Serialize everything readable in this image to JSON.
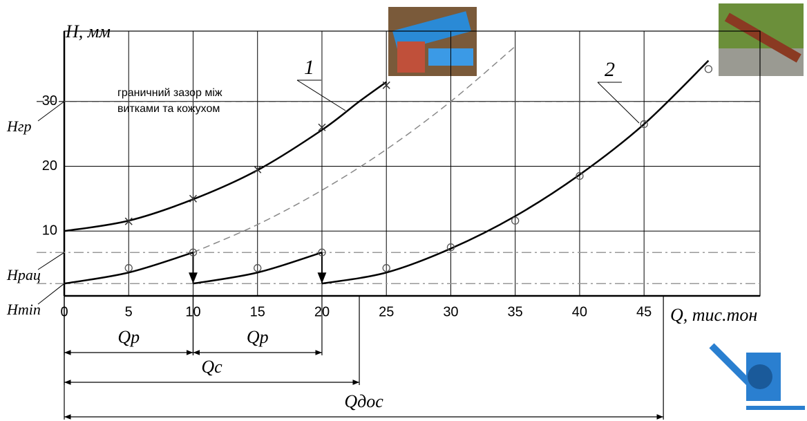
{
  "chart_data": {
    "type": "line",
    "y_label": "H, мм",
    "x_label": "Q, тис.тон",
    "xlim": [
      0,
      54
    ],
    "ylim": [
      0,
      40
    ],
    "xticks": [
      0,
      5,
      10,
      15,
      20,
      25,
      30,
      35,
      40,
      45
    ],
    "yticks": [
      10,
      20,
      30
    ],
    "grid": true,
    "series": [
      {
        "name": "1",
        "color": "#000000",
        "style": "solid",
        "x": [
          0,
          5,
          10,
          15,
          20,
          22.9,
          25
        ],
        "values": [
          10,
          11.6,
          14.9,
          19.4,
          25.6,
          30,
          33
        ]
      },
      {
        "color": "#888888",
        "style": "dashed",
        "x": [
          10,
          15,
          20,
          25,
          30,
          35
        ],
        "values": [
          6.7,
          11,
          16.3,
          22.6,
          30,
          38.5
        ]
      },
      {
        "color": "#000000",
        "style": "solid",
        "x": [
          0,
          5,
          10
        ],
        "values": [
          1.9,
          3.6,
          6.7
        ]
      },
      {
        "color": "#000000",
        "style": "solid",
        "x": [
          10,
          15,
          20
        ],
        "values": [
          1.9,
          3.6,
          6.7
        ]
      },
      {
        "name": "2",
        "color": "#000000",
        "style": "solid",
        "x": [
          20,
          25,
          30,
          35,
          40,
          45,
          50
        ],
        "values": [
          1.9,
          3.6,
          7.3,
          12.3,
          18.7,
          26.5,
          36.3
        ]
      }
    ],
    "markers": [
      {
        "shape": "cross",
        "x": [
          5,
          10,
          15,
          20,
          25
        ],
        "values": [
          11.5,
          15,
          19.5,
          26,
          32.5
        ]
      },
      {
        "shape": "circle",
        "x": [
          5,
          10,
          15,
          20,
          25,
          30,
          35,
          40,
          45,
          50
        ],
        "values": [
          4.3,
          6.7,
          4.3,
          6.7,
          4.3,
          7.5,
          11.6,
          18.5,
          26.5,
          35
        ]
      }
    ],
    "hlines": [
      {
        "value": 30,
        "label": "Hгр",
        "style": "dashed"
      },
      {
        "value": 6.7,
        "label": "Hрац",
        "style": "dashdot"
      },
      {
        "value": 1.9,
        "label": "Hmin",
        "style": "dashdot"
      }
    ],
    "origin_label": "0",
    "annotation": [
      "граничний зазор між",
      "витками та кожухом"
    ],
    "dimensions": [
      {
        "label": "Qр",
        "from": 0,
        "to": 10
      },
      {
        "label": "Qр",
        "from": 10,
        "to": 20
      },
      {
        "label": "Qс",
        "from": 0,
        "to": 22.9
      },
      {
        "label": "Qдос",
        "from": 0,
        "to": 46.5
      }
    ]
  }
}
